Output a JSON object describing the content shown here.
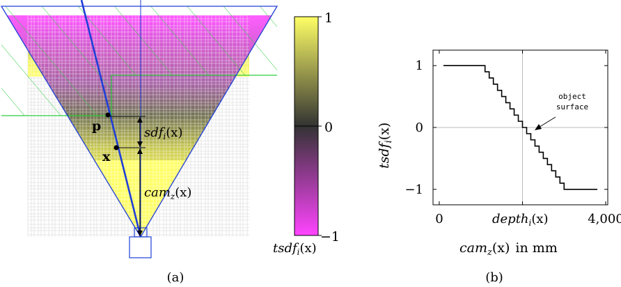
{
  "panel_a": {
    "caption": "(a)",
    "label_p": "p",
    "label_x": "x",
    "label_sdf": "sdf",
    "label_sdf_sub": "i",
    "label_sdf_arg": "(x)",
    "label_cam": "cam",
    "label_cam_sub": "z",
    "label_cam_arg": "(x)"
  },
  "colorbar": {
    "tick_top": "1",
    "tick_mid": "0",
    "tick_bottom": "−1",
    "label": "tsdf",
    "label_sub": "i",
    "label_arg": "(x)",
    "color_top": "#ffff66",
    "color_mid": "#333333",
    "color_bottom": "#ff44ff"
  },
  "panel_b": {
    "caption": "(b)",
    "annotation_line1": "object",
    "annotation_line2": "surface",
    "ylabel": "tsdf",
    "ylabel_sub": "i",
    "ylabel_arg": "(x)",
    "xlabel": "cam",
    "xlabel_sub": "z",
    "xlabel_arg": "(x)",
    "xlabel_suffix": "in mm",
    "xtick_depth": "depth",
    "xtick_depth_sub": "i",
    "xtick_depth_arg": "(x)"
  },
  "chart_data": {
    "type": "line",
    "x_ticks": [
      0,
      4000
    ],
    "x_tick_labels": [
      "0",
      "4,000"
    ],
    "y_ticks": [
      1,
      0,
      -1
    ],
    "y_tick_labels": [
      "1",
      "0",
      "−1"
    ],
    "xlim": [
      -150,
      4050
    ],
    "ylim": [
      -1.25,
      1.25
    ],
    "surface_depth": 2000,
    "truncation": 1000,
    "steps": 20,
    "x_start": 100,
    "x_end": 3800,
    "grid": "crosshair at surface_depth and 0"
  }
}
